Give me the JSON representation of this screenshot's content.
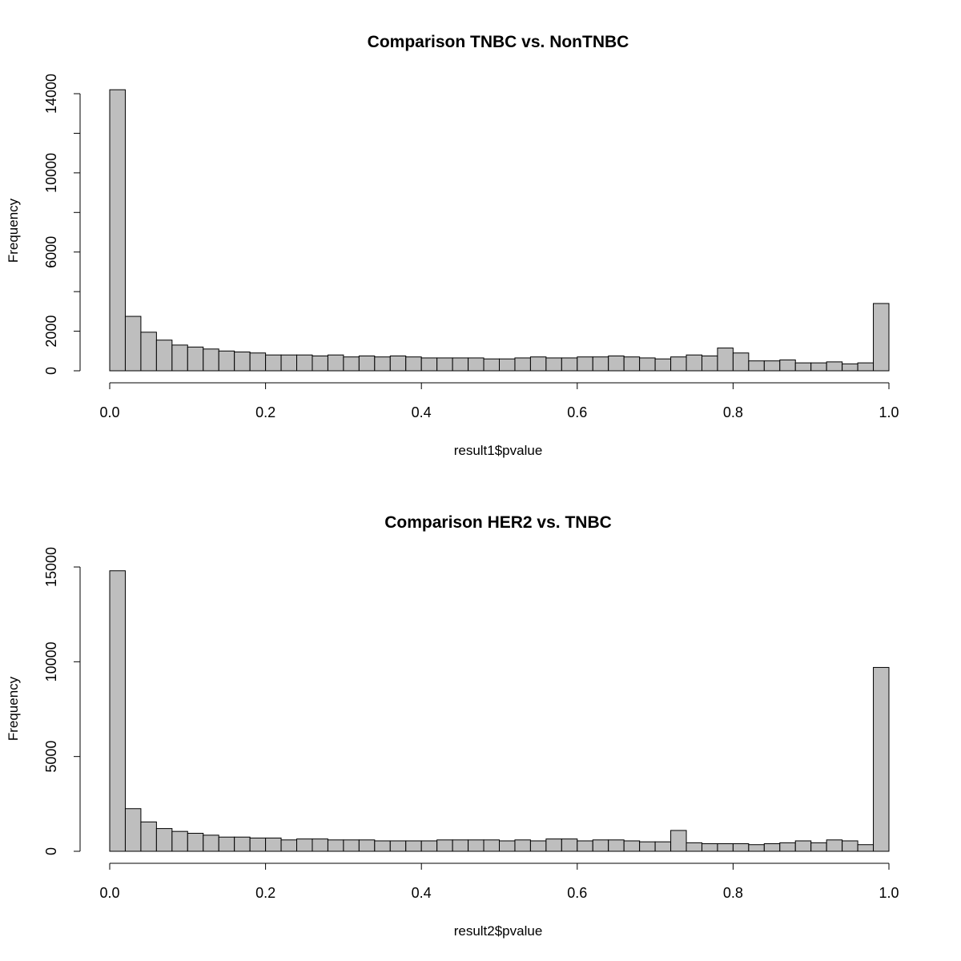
{
  "chart_data": [
    {
      "type": "bar",
      "title": "Comparison TNBC vs. NonTNBC",
      "xlabel": "result1$pvalue",
      "ylabel": "Frequency",
      "xlim": [
        0,
        1
      ],
      "ylim": [
        0,
        14000
      ],
      "bin_width": 0.02,
      "x_ticks": [
        "0.0",
        "0.2",
        "0.4",
        "0.6",
        "0.8",
        "1.0"
      ],
      "y_ticks": [
        "0",
        "2000",
        "6000",
        "10000",
        "14000"
      ],
      "y_tick_values": [
        0,
        2000,
        4000,
        6000,
        8000,
        10000,
        12000,
        14000
      ],
      "bar_color": "#bebebe",
      "values": [
        14200,
        2750,
        1950,
        1550,
        1300,
        1200,
        1100,
        1000,
        950,
        900,
        800,
        800,
        800,
        750,
        800,
        700,
        750,
        700,
        750,
        700,
        650,
        650,
        650,
        650,
        600,
        600,
        650,
        700,
        650,
        650,
        700,
        700,
        750,
        700,
        650,
        600,
        700,
        800,
        750,
        1150,
        900,
        500,
        500,
        550,
        400,
        400,
        450,
        350,
        400,
        3400
      ]
    },
    {
      "type": "bar",
      "title": "Comparison HER2 vs. TNBC",
      "xlabel": "result2$pvalue",
      "ylabel": "Frequency",
      "xlim": [
        0,
        1
      ],
      "ylim": [
        0,
        15000
      ],
      "bin_width": 0.02,
      "x_ticks": [
        "0.0",
        "0.2",
        "0.4",
        "0.6",
        "0.8",
        "1.0"
      ],
      "y_ticks": [
        "0",
        "5000",
        "10000",
        "15000"
      ],
      "y_tick_values": [
        0,
        5000,
        10000,
        15000
      ],
      "bar_color": "#bebebe",
      "values": [
        14800,
        2250,
        1550,
        1200,
        1050,
        950,
        850,
        750,
        750,
        700,
        700,
        600,
        650,
        650,
        600,
        600,
        600,
        550,
        550,
        550,
        550,
        600,
        600,
        600,
        600,
        550,
        600,
        550,
        650,
        650,
        550,
        600,
        600,
        550,
        500,
        500,
        1100,
        450,
        400,
        400,
        400,
        350,
        400,
        450,
        550,
        450,
        600,
        550,
        350,
        9700
      ]
    }
  ]
}
